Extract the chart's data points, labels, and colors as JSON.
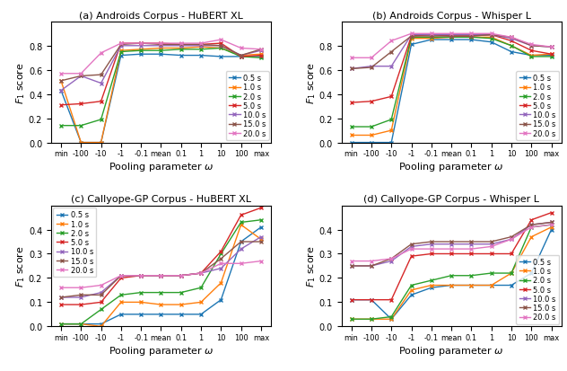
{
  "x_labels": [
    "min",
    "-100",
    "-10",
    "-1",
    "-0.1",
    "mean",
    "0.1",
    "1",
    "10",
    "100",
    "max"
  ],
  "series_labels": [
    "0.5 s",
    "1.0 s",
    "2.0 s",
    "5.0 s",
    "10.0 s",
    "15.0 s",
    "20.0 s"
  ],
  "colors": [
    "#1f77b4",
    "#ff7f0e",
    "#2ca02c",
    "#d62728",
    "#9467bd",
    "#8c564b",
    "#e377c2"
  ],
  "panel_a": {
    "title": "(a) Androids Corpus - HuBERT XL",
    "ylabel": "$F_1$ score",
    "xlabel": "Pooling parameter $\\omega$",
    "ylim": [
      0.0,
      1.0
    ],
    "yticks": [
      0.0,
      0.2,
      0.4,
      0.6,
      0.8
    ],
    "legend_loc": "lower_right",
    "data": [
      [
        0.43,
        0.0,
        0.0,
        0.72,
        0.73,
        0.73,
        0.72,
        0.72,
        0.71,
        0.71,
        0.71
      ],
      [
        0.51,
        0.0,
        0.0,
        0.76,
        0.77,
        0.78,
        0.78,
        0.79,
        0.78,
        0.72,
        0.73
      ],
      [
        0.14,
        0.14,
        0.19,
        0.75,
        0.76,
        0.76,
        0.77,
        0.77,
        0.78,
        0.71,
        0.7
      ],
      [
        0.31,
        0.32,
        0.34,
        0.82,
        0.82,
        0.82,
        0.81,
        0.81,
        0.82,
        0.71,
        0.72
      ],
      [
        0.43,
        0.55,
        0.49,
        0.8,
        0.8,
        0.8,
        0.8,
        0.8,
        0.8,
        0.72,
        0.76
      ],
      [
        0.51,
        0.55,
        0.56,
        0.81,
        0.82,
        0.81,
        0.81,
        0.81,
        0.8,
        0.72,
        0.77
      ],
      [
        0.57,
        0.57,
        0.74,
        0.82,
        0.82,
        0.82,
        0.82,
        0.82,
        0.85,
        0.78,
        0.77
      ]
    ]
  },
  "panel_b": {
    "title": "(b) Androids Corpus - Whisper L",
    "ylabel": "$F_1$ score",
    "xlabel": "Pooling parameter $\\omega$",
    "ylim": [
      0.0,
      1.0
    ],
    "yticks": [
      0.0,
      0.2,
      0.4,
      0.6,
      0.8
    ],
    "legend_loc": "lower_right",
    "data": [
      [
        0.0,
        0.0,
        0.0,
        0.81,
        0.85,
        0.85,
        0.85,
        0.83,
        0.75,
        0.72,
        0.72
      ],
      [
        0.06,
        0.06,
        0.1,
        0.86,
        0.86,
        0.87,
        0.87,
        0.87,
        0.8,
        0.72,
        0.73
      ],
      [
        0.13,
        0.13,
        0.19,
        0.87,
        0.87,
        0.87,
        0.87,
        0.86,
        0.8,
        0.71,
        0.71
      ],
      [
        0.33,
        0.34,
        0.38,
        0.88,
        0.89,
        0.88,
        0.88,
        0.89,
        0.84,
        0.76,
        0.73
      ],
      [
        0.61,
        0.63,
        0.63,
        0.89,
        0.89,
        0.89,
        0.89,
        0.89,
        0.86,
        0.8,
        0.79
      ],
      [
        0.61,
        0.62,
        0.75,
        0.88,
        0.88,
        0.88,
        0.88,
        0.89,
        0.87,
        0.8,
        0.79
      ],
      [
        0.7,
        0.7,
        0.84,
        0.9,
        0.9,
        0.9,
        0.9,
        0.9,
        0.87,
        0.81,
        0.79
      ]
    ]
  },
  "panel_c": {
    "title": "(c) Callyope-GP Corpus - HuBERT XL",
    "ylabel": "$F_1$ score",
    "xlabel": "Pooling parameter $\\omega$",
    "ylim": [
      0.0,
      0.5
    ],
    "yticks": [
      0.0,
      0.1,
      0.2,
      0.3,
      0.4
    ],
    "legend_loc": "upper_left",
    "data": [
      [
        0.01,
        0.01,
        0.01,
        0.05,
        0.05,
        0.05,
        0.05,
        0.05,
        0.11,
        0.35,
        0.41
      ],
      [
        0.01,
        0.01,
        0.0,
        0.1,
        0.1,
        0.09,
        0.09,
        0.1,
        0.18,
        0.42,
        0.36
      ],
      [
        0.01,
        0.01,
        0.07,
        0.13,
        0.14,
        0.14,
        0.14,
        0.16,
        0.3,
        0.43,
        0.44
      ],
      [
        0.09,
        0.09,
        0.1,
        0.2,
        0.21,
        0.21,
        0.21,
        0.22,
        0.31,
        0.46,
        0.49
      ],
      [
        0.12,
        0.12,
        0.14,
        0.21,
        0.21,
        0.21,
        0.21,
        0.22,
        0.24,
        0.32,
        0.37
      ],
      [
        0.12,
        0.13,
        0.13,
        0.21,
        0.21,
        0.21,
        0.21,
        0.22,
        0.28,
        0.35,
        0.35
      ],
      [
        0.16,
        0.16,
        0.17,
        0.21,
        0.21,
        0.21,
        0.21,
        0.22,
        0.26,
        0.26,
        0.27
      ]
    ]
  },
  "panel_d": {
    "title": "(d) Callyope-GP Corpus - Whisper L",
    "ylabel": "$F_1$ score",
    "xlabel": "Pooling parameter $\\omega$",
    "ylim": [
      0.0,
      0.5
    ],
    "yticks": [
      0.0,
      0.1,
      0.2,
      0.3,
      0.4
    ],
    "legend_loc": "lower_right",
    "data": [
      [
        0.11,
        0.11,
        0.03,
        0.13,
        0.16,
        0.17,
        0.17,
        0.17,
        0.17,
        0.22,
        0.4
      ],
      [
        0.03,
        0.03,
        0.03,
        0.15,
        0.17,
        0.17,
        0.17,
        0.17,
        0.22,
        0.37,
        0.41
      ],
      [
        0.03,
        0.03,
        0.04,
        0.17,
        0.19,
        0.21,
        0.21,
        0.22,
        0.22,
        0.41,
        0.42
      ],
      [
        0.11,
        0.11,
        0.11,
        0.29,
        0.3,
        0.3,
        0.3,
        0.3,
        0.3,
        0.44,
        0.47
      ],
      [
        0.25,
        0.25,
        0.27,
        0.33,
        0.34,
        0.34,
        0.34,
        0.34,
        0.36,
        0.42,
        0.43
      ],
      [
        0.25,
        0.25,
        0.28,
        0.34,
        0.35,
        0.35,
        0.35,
        0.35,
        0.37,
        0.42,
        0.43
      ],
      [
        0.27,
        0.27,
        0.28,
        0.32,
        0.32,
        0.32,
        0.32,
        0.33,
        0.36,
        0.41,
        0.42
      ]
    ]
  }
}
